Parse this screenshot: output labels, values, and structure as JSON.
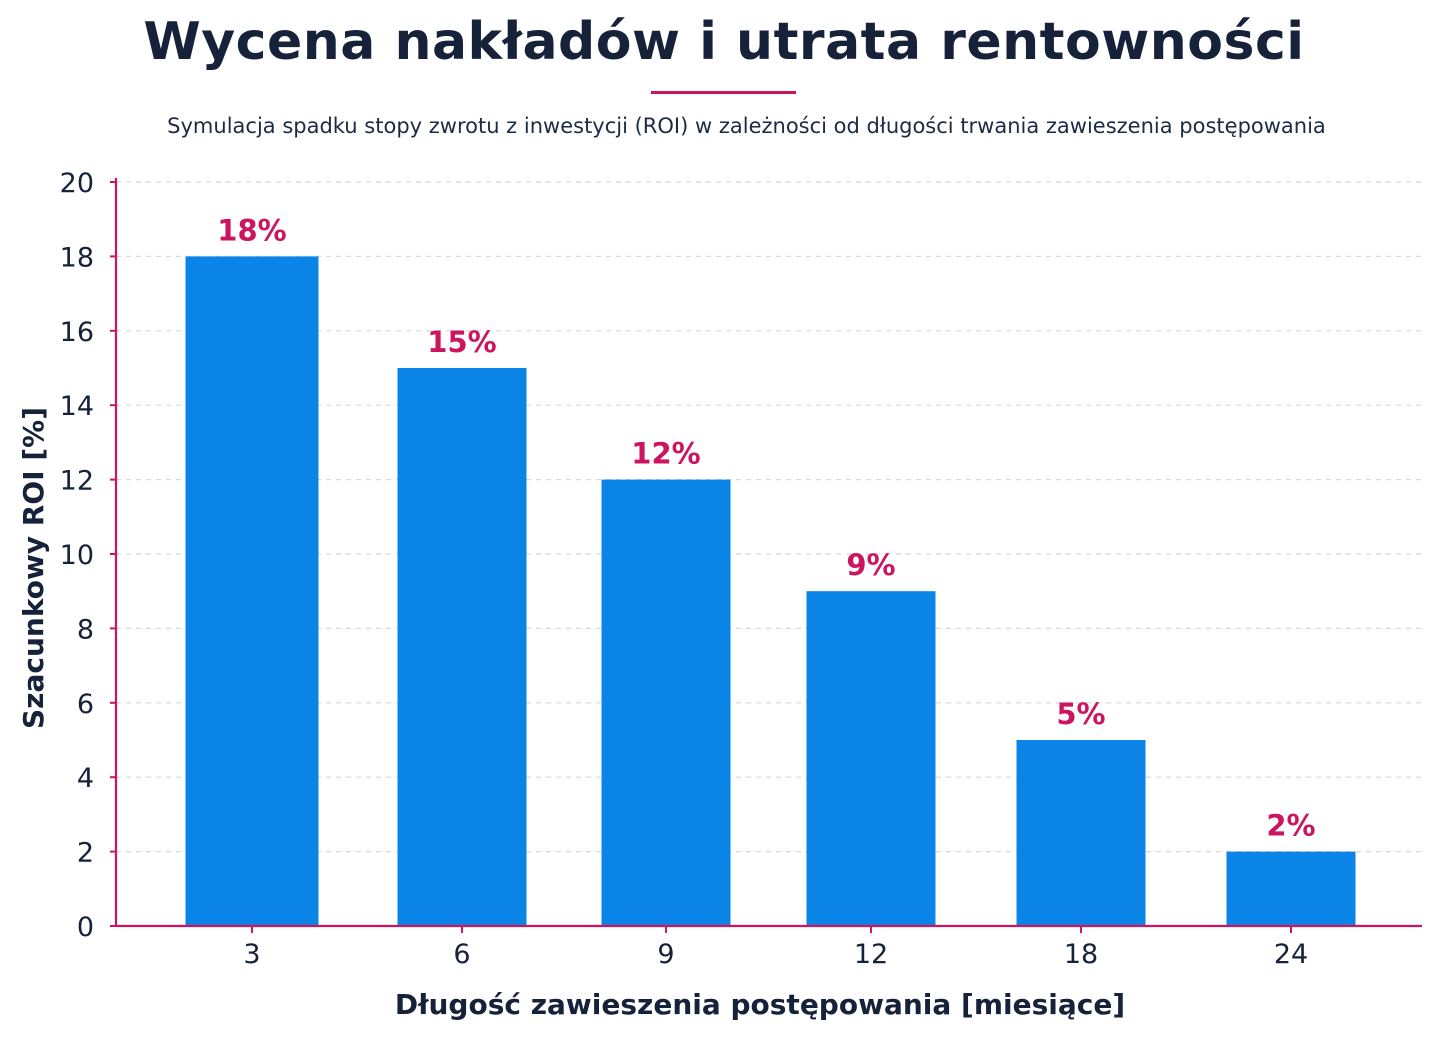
{
  "title": "Wycena nakładów i utrata rentowności",
  "subtitle": "Symulacja spadku stopy zwrotu z inwestycji (ROI) w zależności od długości trwania zawieszenia postępowania",
  "colors": {
    "bar": "#0a84e6",
    "accent": "#cc1460",
    "text": "#16213a",
    "grid": "#d6d9de"
  },
  "chart_data": {
    "type": "bar",
    "categories": [
      "3",
      "6",
      "9",
      "12",
      "18",
      "24"
    ],
    "values": [
      18,
      15,
      12,
      9,
      5,
      2
    ],
    "data_labels": [
      "18%",
      "15%",
      "12%",
      "9%",
      "5%",
      "2%"
    ],
    "xlabel": "Długość zawieszenia postępowania [miesiące]",
    "ylabel": "Szacunkowy ROI [%]",
    "ylim": [
      0,
      20
    ],
    "yticks": [
      0,
      2,
      4,
      6,
      8,
      10,
      12,
      14,
      16,
      18,
      20
    ],
    "grid": true,
    "legend": false
  }
}
